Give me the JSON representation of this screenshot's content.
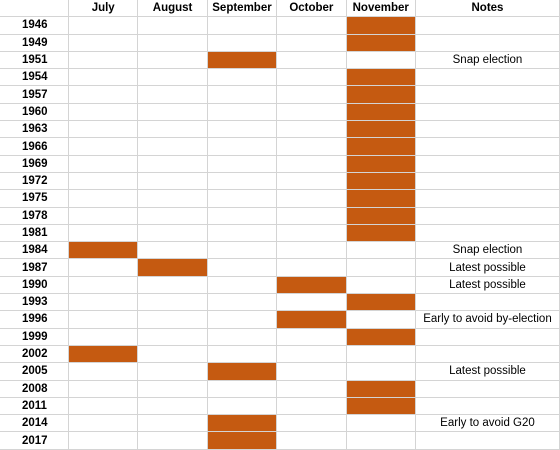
{
  "colors": {
    "fill": "#c55a11",
    "grid": "#d4d4d4"
  },
  "header": {
    "year": "",
    "months": [
      "July",
      "August",
      "September",
      "October",
      "November"
    ],
    "notes": "Notes"
  },
  "rows": [
    {
      "year": "1946",
      "month": "November",
      "note": ""
    },
    {
      "year": "1949",
      "month": "November",
      "note": ""
    },
    {
      "year": "1951",
      "month": "September",
      "note": "Snap election"
    },
    {
      "year": "1954",
      "month": "November",
      "note": ""
    },
    {
      "year": "1957",
      "month": "November",
      "note": ""
    },
    {
      "year": "1960",
      "month": "November",
      "note": ""
    },
    {
      "year": "1963",
      "month": "November",
      "note": ""
    },
    {
      "year": "1966",
      "month": "November",
      "note": ""
    },
    {
      "year": "1969",
      "month": "November",
      "note": ""
    },
    {
      "year": "1972",
      "month": "November",
      "note": ""
    },
    {
      "year": "1975",
      "month": "November",
      "note": ""
    },
    {
      "year": "1978",
      "month": "November",
      "note": ""
    },
    {
      "year": "1981",
      "month": "November",
      "note": ""
    },
    {
      "year": "1984",
      "month": "July",
      "note": "Snap election"
    },
    {
      "year": "1987",
      "month": "August",
      "note": "Latest possible"
    },
    {
      "year": "1990",
      "month": "October",
      "note": "Latest possible"
    },
    {
      "year": "1993",
      "month": "November",
      "note": ""
    },
    {
      "year": "1996",
      "month": "October",
      "note": "Early to avoid by-election"
    },
    {
      "year": "1999",
      "month": "November",
      "note": ""
    },
    {
      "year": "2002",
      "month": "July",
      "note": ""
    },
    {
      "year": "2005",
      "month": "September",
      "note": "Latest possible"
    },
    {
      "year": "2008",
      "month": "November",
      "note": ""
    },
    {
      "year": "2011",
      "month": "November",
      "note": ""
    },
    {
      "year": "2014",
      "month": "September",
      "note": "Early to avoid G20"
    },
    {
      "year": "2017",
      "month": "September",
      "note": ""
    }
  ]
}
